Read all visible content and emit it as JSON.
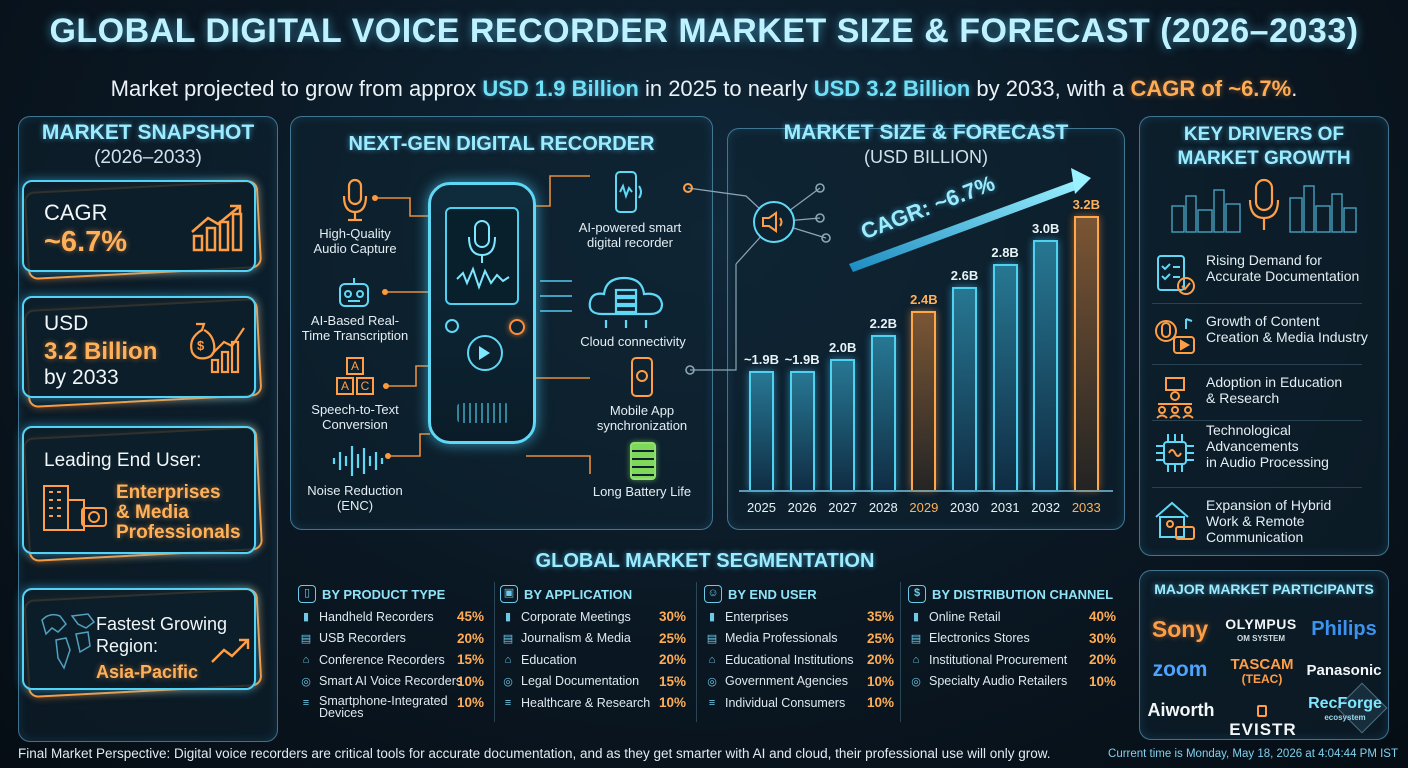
{
  "title": "GLOBAL DIGITAL VOICE RECORDER MARKET SIZE & FORECAST (2026–2033)",
  "subtitle": {
    "p1": "Market projected to grow from approx ",
    "v1": "USD 1.9 Billion",
    "p2": " in 2025 to nearly ",
    "v2": "USD 3.2 Billion",
    "p3": " by 2033, with a ",
    "v3": "CAGR of ~6.7%",
    "p4": "."
  },
  "snapshot": {
    "title": "MARKET SNAPSHOT",
    "subtitle": "(2026–2033)",
    "cagr_label": "CAGR",
    "cagr_value": "~6.7%",
    "usd_label": "USD",
    "usd_value": "3.2 Billion",
    "usd_by": "by 2033",
    "enduser_label": "Leading End User:",
    "enduser_value_1": "Enterprises",
    "enduser_value_2": "& Media",
    "enduser_value_3": "Professionals",
    "region_label_1": "Fastest Growing",
    "region_label_2": "Region:",
    "region_value": "Asia-Pacific"
  },
  "recorder": {
    "title": "NEXT-GEN DIGITAL RECORDER",
    "features": {
      "audio_1": "High-Quality",
      "audio_2": "Audio Capture",
      "ai_1": "AI-Based Real-",
      "ai_2": "Time Transcription",
      "stt_1": "Speech-to-Text",
      "stt_2": "Conversion",
      "noise_1": "Noise Reduction",
      "noise_2": "(ENC)",
      "smart_1": "AI-powered smart",
      "smart_2": "digital recorder",
      "cloud": "Cloud connectivity",
      "mobile_1": "Mobile App",
      "mobile_2": "synchronization",
      "battery": "Long Battery Life"
    },
    "stt_letters": [
      "A",
      "A",
      "C"
    ]
  },
  "forecast": {
    "title": "MARKET SIZE & FORECAST",
    "subtitle": "(USD BILLION)",
    "cagr_annotation": "CAGR: ~6.7%"
  },
  "chart_data": {
    "type": "bar",
    "title": "MARKET SIZE & FORECAST",
    "ylabel": "(USD BILLION)",
    "categories": [
      "2025",
      "2026",
      "2027",
      "2028",
      "2029",
      "2030",
      "2031",
      "2032",
      "2033"
    ],
    "values": [
      1.9,
      1.9,
      2.0,
      2.2,
      2.4,
      2.6,
      2.8,
      3.0,
      3.2
    ],
    "data_labels": [
      "~1.9B",
      "~1.9B",
      "2.0B",
      "2.2B",
      "2.4B",
      "2.6B",
      "2.8B",
      "3.0B",
      "3.2B"
    ],
    "highlighted": [
      "2029",
      "2033"
    ],
    "annotation": "CAGR: ~6.7%",
    "colors": {
      "bar": "#4fd2f0",
      "highlight": "#ffa84a"
    },
    "grid": false
  },
  "drivers": {
    "title_1": "KEY DRIVERS OF",
    "title_2": "MARKET GROWTH",
    "items": [
      {
        "l1": "Rising Demand for",
        "l2": "Accurate Documentation",
        "l3": "",
        "icon": "checklist-icon"
      },
      {
        "l1": "Growth of Content",
        "l2": "Creation & Media Industry",
        "l3": "",
        "icon": "media-icon"
      },
      {
        "l1": "Adoption in Education",
        "l2": "& Research",
        "l3": "",
        "icon": "classroom-icon"
      },
      {
        "l1": "Technological",
        "l2": "Advancements",
        "l3": "in Audio Processing",
        "icon": "chip-icon"
      },
      {
        "l1": "Expansion of Hybrid",
        "l2": "Work & Remote",
        "l3": "Communication",
        "icon": "remote-work-icon"
      }
    ]
  },
  "segmentation": {
    "title": "GLOBAL MARKET SEGMENTATION",
    "columns": [
      {
        "header": "BY PRODUCT TYPE",
        "rows": [
          {
            "label": "Handheld Recorders",
            "pct": "45%"
          },
          {
            "label": "USB Recorders",
            "pct": "20%"
          },
          {
            "label": "Conference Recorders",
            "pct": "15%"
          },
          {
            "label": "Smart AI Voice Recorders",
            "pct": "10%"
          },
          {
            "label": "Smartphone-Integrated",
            "label2": "Devices",
            "pct": "10%"
          }
        ]
      },
      {
        "header": "BY APPLICATION",
        "rows": [
          {
            "label": "Corporate Meetings",
            "pct": "30%"
          },
          {
            "label": "Journalism & Media",
            "pct": "25%"
          },
          {
            "label": "Education",
            "pct": "20%"
          },
          {
            "label": "Legal Documentation",
            "pct": "15%"
          },
          {
            "label": "Healthcare & Research",
            "pct": "10%"
          }
        ]
      },
      {
        "header": "BY END USER",
        "rows": [
          {
            "label": "Enterprises",
            "pct": "35%"
          },
          {
            "label": "Media Professionals",
            "pct": "25%"
          },
          {
            "label": "Educational Institutions",
            "pct": "20%"
          },
          {
            "label": "Government Agencies",
            "pct": "10%"
          },
          {
            "label": "Individual Consumers",
            "pct": "10%"
          }
        ]
      },
      {
        "header": "BY DISTRIBUTION CHANNEL",
        "rows": [
          {
            "label": "Online Retail",
            "pct": "40%"
          },
          {
            "label": "Electronics Stores",
            "pct": "30%"
          },
          {
            "label": "Institutional Procurement",
            "pct": "20%"
          },
          {
            "label": "Specialty Audio Retailers",
            "pct": "10%"
          }
        ]
      }
    ]
  },
  "participants": {
    "title": "MAJOR MARKET PARTICIPANTS",
    "logos": {
      "sony": "Sony",
      "olympus": "OLYMPUS",
      "olympus_sub": "OM SYSTEM",
      "philips": "Philips",
      "zoom": "zoom",
      "tascam": "TASCAM",
      "tascam_sub": "(TEAC)",
      "panasonic": "Panasonic",
      "aiworth": "Aiworth",
      "evistr": "EVISTR",
      "recforge": "RecForge",
      "recforge_sub": "ecosystem"
    }
  },
  "footer": {
    "perspective": "Final Market Perspective: Digital voice recorders are critical tools for accurate documentation, and as they get smarter with AI and cloud, their professional use will only grow.",
    "time": "Current time is Monday, May 18, 2026 at 4:04:44 PM IST"
  }
}
